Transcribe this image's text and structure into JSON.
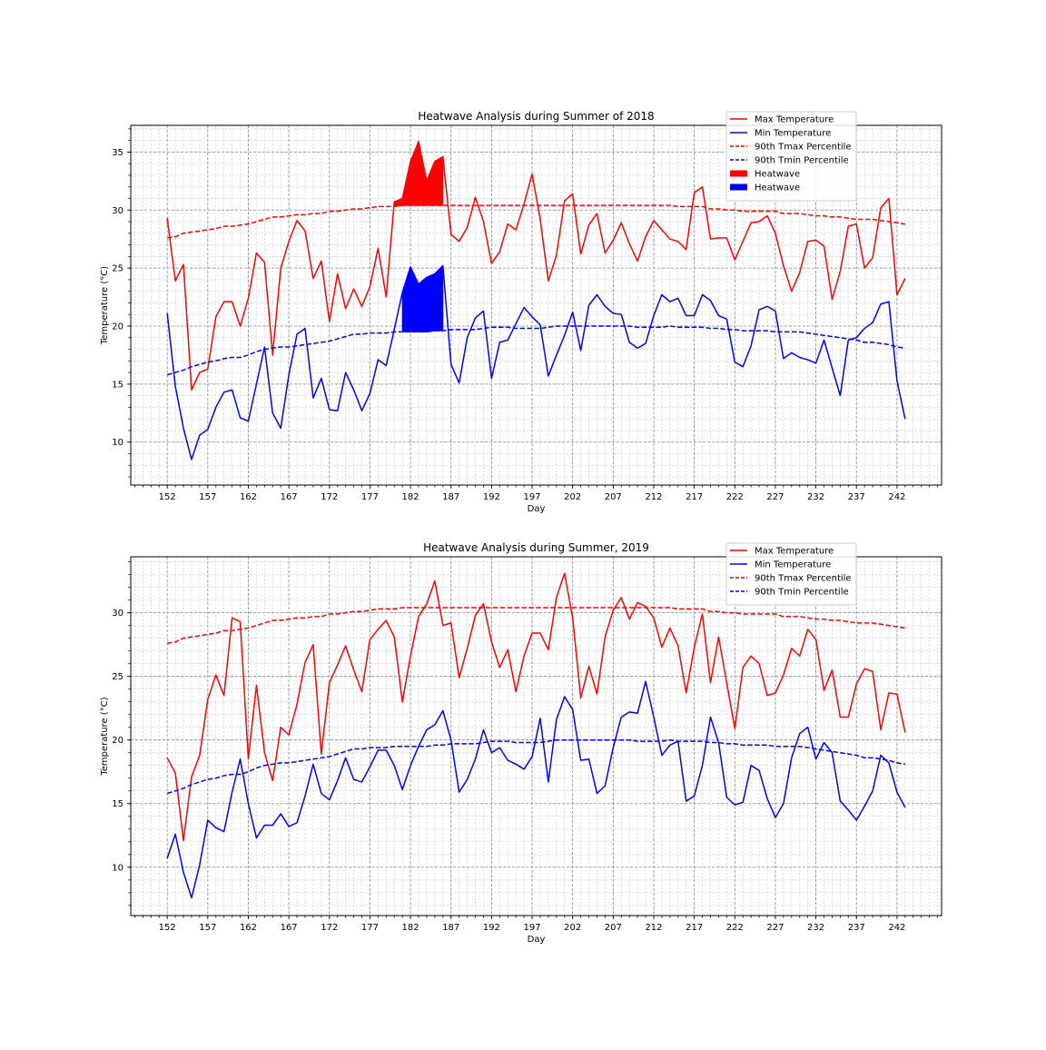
{
  "chart_data": [
    {
      "type": "line",
      "title": "Heatwave Analysis during Summer of 2018",
      "xlabel": "Day",
      "ylabel": "Temperature (°C)",
      "xlim": [
        147.5,
        247.5
      ],
      "ylim": [
        6.3,
        37.3
      ],
      "xticks": [
        152,
        157,
        162,
        167,
        172,
        177,
        182,
        187,
        192,
        197,
        202,
        207,
        212,
        217,
        222,
        227,
        232,
        237,
        242
      ],
      "yticks": [
        10,
        15,
        20,
        25,
        30,
        35
      ],
      "grid": "major and minor, dashed",
      "legend_position": "top-right",
      "x_start": 152,
      "series": [
        {
          "name": "Max Temperature",
          "color": "#ff0000",
          "style": "solid",
          "values": [
            29.3,
            23.9,
            25.3,
            14.5,
            16.0,
            16.3,
            20.8,
            22.1,
            22.1,
            20.0,
            22.4,
            26.3,
            25.5,
            17.5,
            25.0,
            27.3,
            29.1,
            28.2,
            24.1,
            25.6,
            20.4,
            24.5,
            21.5,
            23.2,
            21.7,
            23.4,
            26.7,
            22.5,
            30.7,
            31.0,
            34.2,
            35.9,
            32.5,
            34.2,
            34.6,
            27.9,
            27.3,
            28.5,
            31.1,
            29.0,
            25.4,
            26.4,
            28.8,
            28.3,
            30.5,
            33.1,
            29.2,
            23.9,
            26.1,
            30.8,
            31.4,
            26.2,
            28.7,
            29.7,
            26.3,
            27.4,
            28.9,
            27.1,
            25.6,
            27.7,
            29.1,
            28.3,
            27.5,
            27.3,
            26.6,
            31.5,
            32.0,
            27.5,
            27.6,
            27.6,
            25.7,
            27.3,
            28.9,
            29.0,
            29.5,
            28.0,
            25.2,
            23.0,
            24.6,
            27.3,
            27.4,
            26.9,
            22.3,
            24.7,
            28.6,
            28.8,
            25.0,
            25.9,
            30.2,
            31.0,
            22.7,
            24.1
          ]
        },
        {
          "name": "Min Temperature",
          "color": "#0000ff",
          "style": "solid",
          "values": [
            21.1,
            14.8,
            11.2,
            8.5,
            10.6,
            11.1,
            13.0,
            14.3,
            14.5,
            12.1,
            11.8,
            15.0,
            18.2,
            12.5,
            11.2,
            15.8,
            19.3,
            19.8,
            13.8,
            15.5,
            12.8,
            12.7,
            16.0,
            14.5,
            12.7,
            14.2,
            17.1,
            16.6,
            19.7,
            22.9,
            25.1,
            23.6,
            24.2,
            24.5,
            25.2,
            16.7,
            15.1,
            19.0,
            20.7,
            21.3,
            15.5,
            18.6,
            18.8,
            20.2,
            21.6,
            20.8,
            20.1,
            15.7,
            17.5,
            19.2,
            21.2,
            17.9,
            21.8,
            22.7,
            21.7,
            21.1,
            21.0,
            18.6,
            18.1,
            18.5,
            20.9,
            22.7,
            22.1,
            22.4,
            20.9,
            20.9,
            22.7,
            22.2,
            20.9,
            20.6,
            16.9,
            16.5,
            18.3,
            21.4,
            21.7,
            21.3,
            17.2,
            17.7,
            17.3,
            17.1,
            16.8,
            18.8,
            16.4,
            14.0,
            18.8,
            19.0,
            19.8,
            20.3,
            21.9,
            22.1,
            15.3,
            12.0
          ]
        },
        {
          "name": "90th Tmax Percentile",
          "color": "#ff0000",
          "style": "dashed",
          "values": [
            27.6,
            27.7,
            28.0,
            28.1,
            28.2,
            28.3,
            28.4,
            28.6,
            28.6,
            28.7,
            28.8,
            29.0,
            29.2,
            29.4,
            29.4,
            29.5,
            29.6,
            29.6,
            29.7,
            29.7,
            29.9,
            29.9,
            30.0,
            30.1,
            30.1,
            30.2,
            30.3,
            30.3,
            30.3,
            30.4,
            30.4,
            30.4,
            30.4,
            30.4,
            30.4,
            30.4,
            30.4,
            30.4,
            30.4,
            30.4,
            30.4,
            30.4,
            30.4,
            30.4,
            30.4,
            30.4,
            30.4,
            30.4,
            30.4,
            30.4,
            30.4,
            30.4,
            30.4,
            30.4,
            30.4,
            30.4,
            30.4,
            30.4,
            30.4,
            30.4,
            30.4,
            30.4,
            30.4,
            30.3,
            30.3,
            30.3,
            30.3,
            30.1,
            30.1,
            30.0,
            30.0,
            29.9,
            29.9,
            29.9,
            29.9,
            29.9,
            29.7,
            29.7,
            29.7,
            29.6,
            29.5,
            29.5,
            29.4,
            29.4,
            29.3,
            29.2,
            29.2,
            29.2,
            29.1,
            29.0,
            28.9,
            28.8
          ]
        },
        {
          "name": "90th Tmin Percentile",
          "color": "#0000ff",
          "style": "dashed",
          "values": [
            15.8,
            16.0,
            16.2,
            16.5,
            16.7,
            16.9,
            17.0,
            17.2,
            17.3,
            17.3,
            17.5,
            17.8,
            18.0,
            18.1,
            18.2,
            18.2,
            18.3,
            18.4,
            18.5,
            18.6,
            18.7,
            18.9,
            19.1,
            19.3,
            19.3,
            19.4,
            19.4,
            19.4,
            19.5,
            19.5,
            19.5,
            19.5,
            19.5,
            19.6,
            19.6,
            19.7,
            19.7,
            19.7,
            19.7,
            19.8,
            19.9,
            19.9,
            19.9,
            19.8,
            19.8,
            19.8,
            19.8,
            19.9,
            20.0,
            20.0,
            20.0,
            20.0,
            20.0,
            20.0,
            20.0,
            20.0,
            20.0,
            20.0,
            19.9,
            19.9,
            19.9,
            19.9,
            20.0,
            19.9,
            19.9,
            19.9,
            19.9,
            19.8,
            19.8,
            19.7,
            19.7,
            19.6,
            19.6,
            19.6,
            19.6,
            19.5,
            19.5,
            19.5,
            19.5,
            19.4,
            19.3,
            19.2,
            19.1,
            19.0,
            18.9,
            18.8,
            18.6,
            18.6,
            18.5,
            18.4,
            18.2,
            18.1
          ]
        }
      ],
      "heatwaves": [
        {
          "name": "Heatwave",
          "color": "#ff0000",
          "based_on": "Max Temperature",
          "day_start": 180,
          "day_end": 186
        },
        {
          "name": "Heatwave",
          "color": "#0000ff",
          "based_on": "Min Temperature",
          "day_start": 181,
          "day_end": 186
        }
      ],
      "legend": [
        "Max Temperature",
        "Min Temperature",
        "90th Tmax Percentile",
        "90th Tmin Percentile",
        "Heatwave",
        "Heatwave"
      ]
    },
    {
      "type": "line",
      "title": "Heatwave Analysis during Summer, 2019",
      "xlabel": "Day",
      "ylabel": "Temperature (°C)",
      "xlim": [
        147.5,
        247.5
      ],
      "ylim": [
        6.2,
        34.4
      ],
      "xticks": [
        152,
        157,
        162,
        167,
        172,
        177,
        182,
        187,
        192,
        197,
        202,
        207,
        212,
        217,
        222,
        227,
        232,
        237,
        242
      ],
      "yticks": [
        10,
        15,
        20,
        25,
        30
      ],
      "grid": "major and minor, dashed",
      "legend_position": "top-right",
      "x_start": 152,
      "series": [
        {
          "name": "Max Temperature",
          "color": "#ff0000",
          "style": "solid",
          "values": [
            18.6,
            17.4,
            12.1,
            17.1,
            18.8,
            23.2,
            25.1,
            23.5,
            29.6,
            29.3,
            18.5,
            24.3,
            19.0,
            16.8,
            21.0,
            20.4,
            22.8,
            26.1,
            27.5,
            18.9,
            24.5,
            25.9,
            27.4,
            25.5,
            23.8,
            27.9,
            28.7,
            29.4,
            28.1,
            23.0,
            26.6,
            29.7,
            30.7,
            32.5,
            29.0,
            29.2,
            24.9,
            27.2,
            29.8,
            30.7,
            27.7,
            25.7,
            27.1,
            23.8,
            26.6,
            28.4,
            28.4,
            27.1,
            31.2,
            33.1,
            29.6,
            23.3,
            25.8,
            23.6,
            28.1,
            30.2,
            31.2,
            29.5,
            30.8,
            30.5,
            29.6,
            27.3,
            28.8,
            27.4,
            23.7,
            27.3,
            29.9,
            24.5,
            28.1,
            24.5,
            20.9,
            25.7,
            26.6,
            26.0,
            23.5,
            23.7,
            25.1,
            27.2,
            26.6,
            28.7,
            27.9,
            23.9,
            25.5,
            21.8,
            21.8,
            24.4,
            25.6,
            25.4,
            20.8,
            23.7,
            23.6,
            20.6
          ]
        },
        {
          "name": "Min Temperature",
          "color": "#0000ff",
          "style": "solid",
          "values": [
            10.7,
            12.6,
            9.6,
            7.6,
            10.2,
            13.7,
            13.1,
            12.8,
            15.9,
            18.5,
            15.0,
            12.3,
            13.3,
            13.3,
            14.2,
            13.2,
            13.5,
            15.6,
            18.1,
            15.8,
            15.3,
            16.8,
            18.6,
            16.9,
            16.7,
            17.9,
            19.2,
            19.2,
            18.0,
            16.1,
            18.0,
            19.5,
            20.8,
            21.2,
            22.3,
            20.0,
            15.9,
            16.9,
            18.5,
            20.8,
            19.0,
            19.4,
            18.4,
            18.1,
            17.7,
            18.7,
            21.7,
            16.7,
            21.6,
            23.4,
            22.4,
            18.4,
            18.5,
            15.8,
            16.4,
            19.4,
            21.8,
            22.2,
            22.1,
            24.6,
            21.8,
            18.8,
            19.6,
            19.9,
            15.2,
            15.6,
            18.0,
            21.8,
            19.8,
            15.5,
            14.9,
            15.1,
            18.0,
            17.6,
            15.4,
            13.9,
            15.0,
            18.6,
            20.5,
            21.0,
            18.5,
            19.8,
            19.0,
            15.2,
            14.5,
            13.7,
            14.8,
            16.0,
            18.8,
            18.2,
            15.9,
            14.7
          ]
        },
        {
          "name": "90th Tmax Percentile",
          "color": "#ff0000",
          "style": "dashed",
          "values": [
            27.6,
            27.7,
            28.0,
            28.1,
            28.2,
            28.3,
            28.4,
            28.6,
            28.6,
            28.7,
            28.8,
            29.0,
            29.2,
            29.4,
            29.4,
            29.5,
            29.6,
            29.6,
            29.7,
            29.7,
            29.9,
            29.9,
            30.0,
            30.1,
            30.1,
            30.2,
            30.3,
            30.3,
            30.3,
            30.4,
            30.4,
            30.4,
            30.4,
            30.4,
            30.4,
            30.4,
            30.4,
            30.4,
            30.4,
            30.4,
            30.4,
            30.4,
            30.4,
            30.4,
            30.4,
            30.4,
            30.4,
            30.4,
            30.4,
            30.4,
            30.4,
            30.4,
            30.4,
            30.4,
            30.4,
            30.4,
            30.4,
            30.4,
            30.4,
            30.4,
            30.4,
            30.4,
            30.4,
            30.3,
            30.3,
            30.3,
            30.3,
            30.1,
            30.1,
            30.0,
            30.0,
            29.9,
            29.9,
            29.9,
            29.9,
            29.9,
            29.7,
            29.7,
            29.7,
            29.6,
            29.5,
            29.5,
            29.4,
            29.4,
            29.3,
            29.2,
            29.2,
            29.2,
            29.1,
            29.0,
            28.9,
            28.8
          ]
        },
        {
          "name": "90th Tmin Percentile",
          "color": "#0000ff",
          "style": "dashed",
          "values": [
            15.8,
            16.0,
            16.2,
            16.5,
            16.7,
            16.9,
            17.0,
            17.2,
            17.3,
            17.3,
            17.5,
            17.8,
            18.0,
            18.1,
            18.2,
            18.2,
            18.3,
            18.4,
            18.5,
            18.6,
            18.7,
            18.9,
            19.1,
            19.3,
            19.3,
            19.4,
            19.4,
            19.4,
            19.5,
            19.5,
            19.5,
            19.5,
            19.5,
            19.6,
            19.6,
            19.7,
            19.7,
            19.7,
            19.7,
            19.8,
            19.9,
            19.9,
            19.9,
            19.8,
            19.8,
            19.8,
            19.8,
            19.9,
            20.0,
            20.0,
            20.0,
            20.0,
            20.0,
            20.0,
            20.0,
            20.0,
            20.0,
            20.0,
            19.9,
            19.9,
            19.9,
            19.9,
            20.0,
            19.9,
            19.9,
            19.9,
            19.9,
            19.8,
            19.8,
            19.7,
            19.7,
            19.6,
            19.6,
            19.6,
            19.6,
            19.5,
            19.5,
            19.5,
            19.5,
            19.4,
            19.3,
            19.2,
            19.1,
            19.0,
            18.9,
            18.8,
            18.6,
            18.6,
            18.5,
            18.4,
            18.2,
            18.1
          ]
        }
      ],
      "heatwaves": [],
      "legend": [
        "Max Temperature",
        "Min Temperature",
        "90th Tmax Percentile",
        "90th Tmin Percentile"
      ]
    }
  ]
}
